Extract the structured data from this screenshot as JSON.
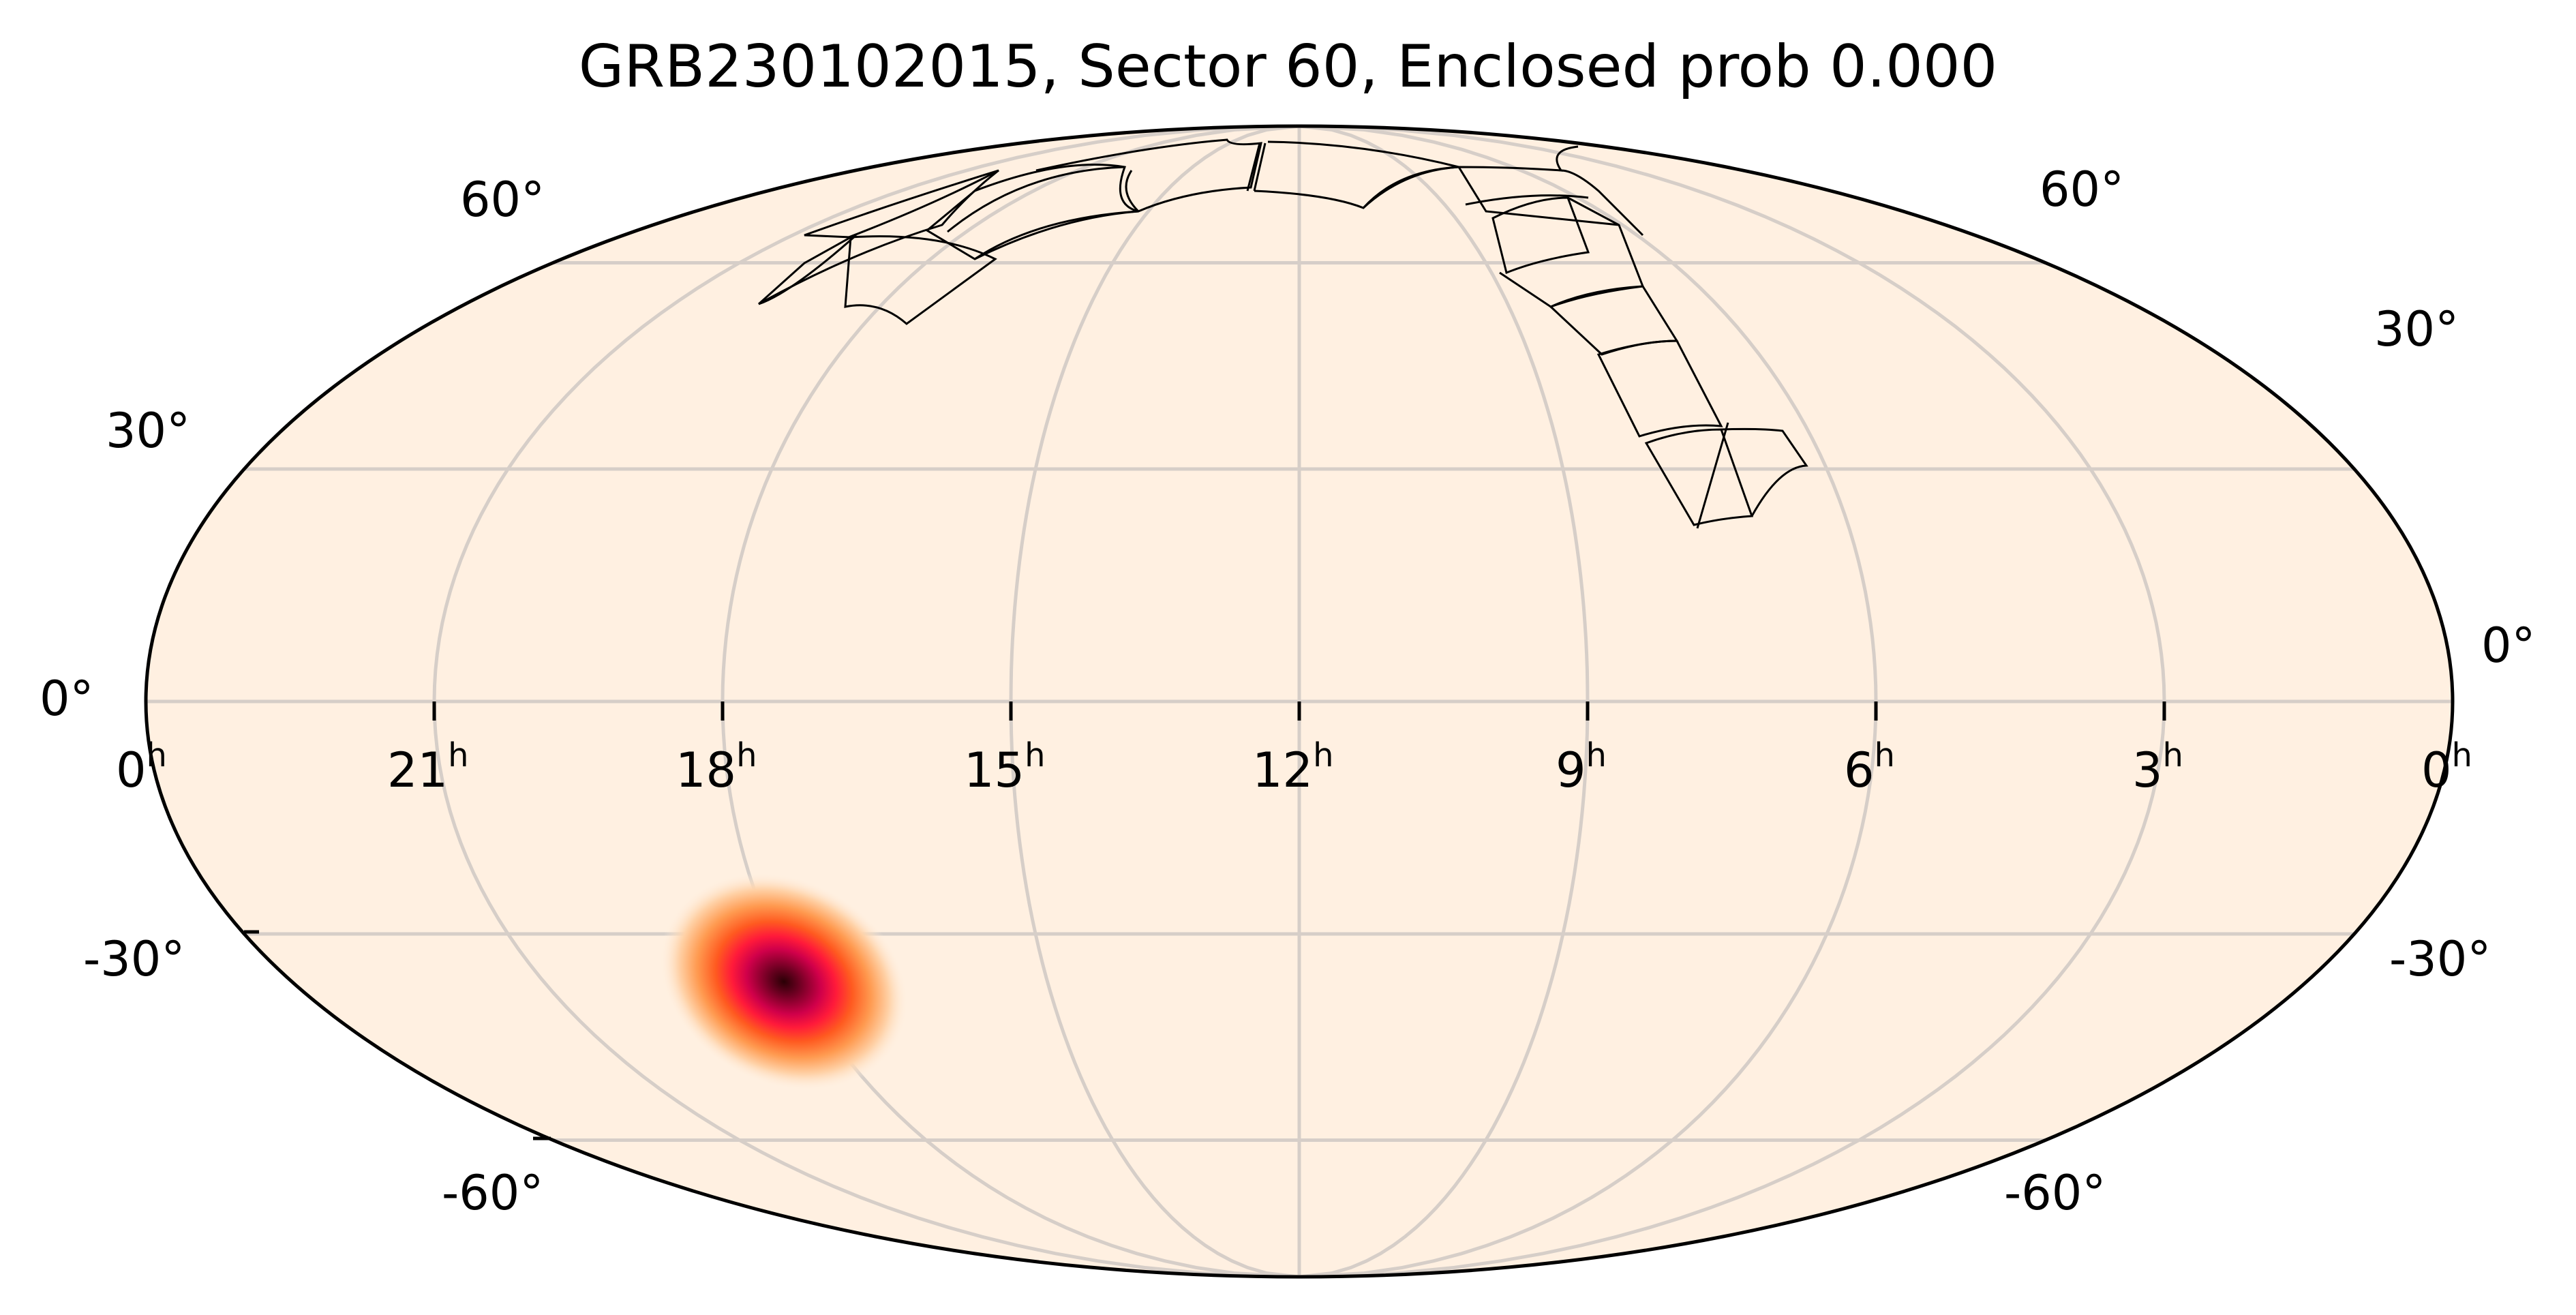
{
  "chart_data": {
    "type": "heatmap",
    "projection": "mollweide",
    "title": "GRB230102015, Sector 60, Enclosed prob 0.000",
    "xlabel": "",
    "ylabel": "",
    "x_ticks": [
      "0h",
      "21h",
      "18h",
      "15h",
      "12h",
      "9h",
      "6h",
      "3h",
      "0h"
    ],
    "x_tick_ra_hours": [
      24,
      21,
      18,
      15,
      12,
      9,
      6,
      3,
      0
    ],
    "y_ticks": [
      "-60°",
      "-30°",
      "0°",
      "30°",
      "60°"
    ],
    "y_tick_values": [
      -60,
      -30,
      0,
      30,
      60
    ],
    "grid": true,
    "background_color": "#fff0e1",
    "grid_color": "#d6cec8",
    "colormap": "light-orange-to-red-to-black",
    "probability_peak": {
      "ra_hours": 17.5,
      "dec_deg": -36,
      "sigma_ra_deg": 6,
      "sigma_dec_deg": 5
    },
    "enclosed_probability": 0.0,
    "sector": 60,
    "event": "GRB230102015",
    "footprint_tiles_count": 16
  },
  "labels": {
    "title": "GRB230102015, Sector 60, Enclosed prob 0.000",
    "ra": [
      {
        "main": "0",
        "sup": "h"
      },
      {
        "main": "21",
        "sup": "h"
      },
      {
        "main": "18",
        "sup": "h"
      },
      {
        "main": "15",
        "sup": "h"
      },
      {
        "main": "12",
        "sup": "h"
      },
      {
        "main": "9",
        "sup": "h"
      },
      {
        "main": "6",
        "sup": "h"
      },
      {
        "main": "3",
        "sup": "h"
      },
      {
        "main": "0",
        "sup": "h"
      }
    ],
    "dec_left": [
      "60°",
      "30°",
      "0°",
      "-30°",
      "-60°"
    ],
    "dec_right": [
      "60°",
      "30°",
      "0°",
      "-30°",
      "-60°"
    ]
  }
}
